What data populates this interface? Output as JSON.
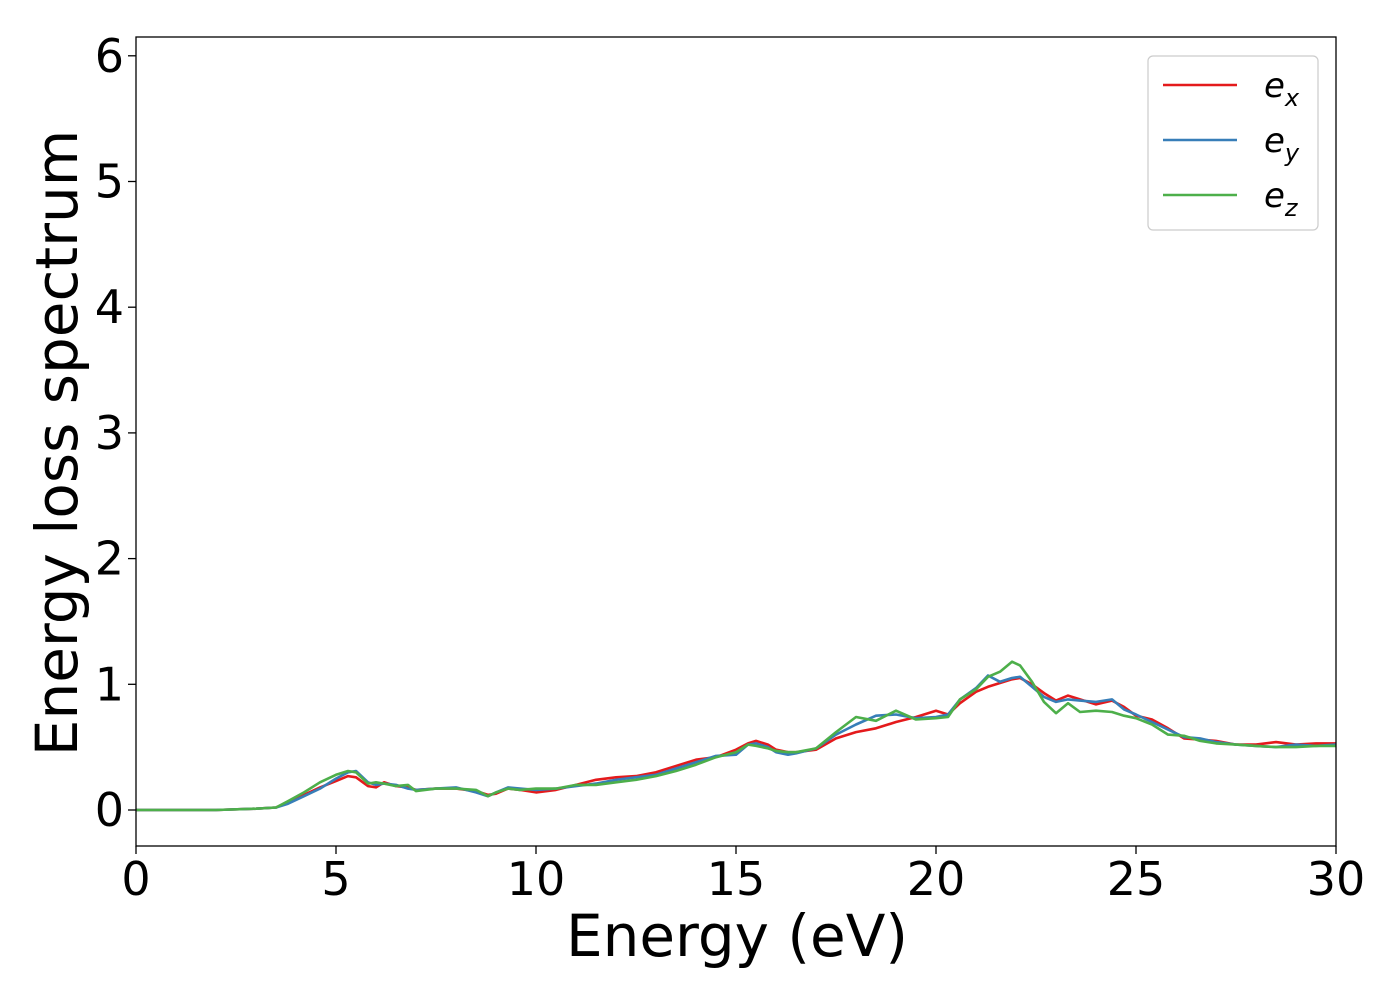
{
  "chart_data": {
    "type": "line",
    "title": "",
    "xlabel": "Energy (eV)",
    "ylabel": "Energy loss spectrum",
    "xlim": [
      0,
      30
    ],
    "ylim": [
      -0.3,
      6.1
    ],
    "xticks": [
      0,
      5,
      10,
      15,
      20,
      25,
      30
    ],
    "yticks": [
      0,
      1,
      2,
      3,
      4,
      5,
      6
    ],
    "grid": false,
    "legend": {
      "position": "top-right",
      "entries": [
        {
          "base": "e",
          "sub": "x"
        },
        {
          "base": "e",
          "sub": "y"
        },
        {
          "base": "e",
          "sub": "z"
        }
      ]
    },
    "series": [
      {
        "key": "ex",
        "color": "#e41a1c",
        "x": [
          0,
          1,
          2,
          3,
          3.5,
          3.8,
          4.2,
          4.6,
          5.0,
          5.3,
          5.5,
          5.8,
          6.0,
          6.2,
          6.5,
          6.8,
          7.0,
          7.5,
          8.0,
          8.5,
          8.8,
          9.0,
          9.3,
          9.6,
          10.0,
          10.5,
          11.0,
          11.5,
          12.0,
          12.5,
          13.0,
          13.5,
          14.0,
          14.5,
          15.0,
          15.3,
          15.5,
          15.8,
          16.0,
          16.3,
          16.5,
          17.0,
          17.5,
          18.0,
          18.5,
          19.0,
          19.5,
          20.0,
          20.3,
          20.6,
          21.0,
          21.3,
          21.6,
          21.9,
          22.1,
          22.4,
          22.7,
          23.0,
          23.3,
          23.6,
          24.0,
          24.4,
          24.7,
          25.0,
          25.4,
          25.8,
          26.2,
          26.6,
          27.0,
          27.5,
          28.0,
          28.5,
          29.0,
          29.5,
          30.0
        ],
        "values": [
          0,
          0,
          0,
          0.01,
          0.02,
          0.06,
          0.12,
          0.18,
          0.23,
          0.27,
          0.26,
          0.19,
          0.18,
          0.22,
          0.19,
          0.18,
          0.16,
          0.17,
          0.17,
          0.15,
          0.12,
          0.13,
          0.17,
          0.16,
          0.14,
          0.16,
          0.2,
          0.24,
          0.26,
          0.27,
          0.3,
          0.35,
          0.4,
          0.42,
          0.48,
          0.53,
          0.55,
          0.52,
          0.48,
          0.46,
          0.46,
          0.48,
          0.57,
          0.62,
          0.65,
          0.7,
          0.74,
          0.79,
          0.76,
          0.85,
          0.94,
          0.98,
          1.01,
          1.04,
          1.05,
          1.0,
          0.93,
          0.87,
          0.91,
          0.88,
          0.84,
          0.87,
          0.82,
          0.75,
          0.72,
          0.65,
          0.57,
          0.56,
          0.55,
          0.52,
          0.52,
          0.54,
          0.52,
          0.53,
          0.53
        ]
      },
      {
        "key": "ey",
        "color": "#377eb8",
        "x": [
          0,
          1,
          2,
          3,
          3.5,
          3.8,
          4.2,
          4.6,
          5.0,
          5.3,
          5.5,
          5.8,
          6.0,
          6.2,
          6.5,
          6.8,
          7.0,
          7.5,
          8.0,
          8.5,
          8.8,
          9.0,
          9.3,
          9.6,
          10.0,
          10.5,
          11.0,
          11.5,
          12.0,
          12.5,
          13.0,
          13.5,
          14.0,
          14.5,
          15.0,
          15.3,
          15.5,
          15.8,
          16.0,
          16.3,
          16.5,
          17.0,
          17.5,
          18.0,
          18.5,
          19.0,
          19.5,
          20.0,
          20.3,
          20.6,
          21.0,
          21.3,
          21.6,
          21.9,
          22.1,
          22.4,
          22.7,
          23.0,
          23.3,
          23.6,
          24.0,
          24.4,
          24.7,
          25.0,
          25.4,
          25.8,
          26.2,
          26.6,
          27.0,
          27.5,
          28.0,
          28.5,
          29.0,
          29.5,
          30.0
        ],
        "values": [
          0,
          0,
          0,
          0.01,
          0.02,
          0.05,
          0.11,
          0.17,
          0.25,
          0.3,
          0.31,
          0.22,
          0.2,
          0.21,
          0.2,
          0.17,
          0.16,
          0.17,
          0.18,
          0.14,
          0.11,
          0.14,
          0.18,
          0.17,
          0.16,
          0.17,
          0.19,
          0.21,
          0.24,
          0.26,
          0.28,
          0.33,
          0.38,
          0.43,
          0.44,
          0.52,
          0.53,
          0.5,
          0.46,
          0.44,
          0.45,
          0.49,
          0.6,
          0.68,
          0.75,
          0.76,
          0.73,
          0.74,
          0.76,
          0.88,
          0.97,
          1.07,
          1.02,
          1.05,
          1.06,
          0.98,
          0.9,
          0.86,
          0.88,
          0.87,
          0.86,
          0.88,
          0.8,
          0.76,
          0.7,
          0.64,
          0.58,
          0.57,
          0.54,
          0.52,
          0.51,
          0.5,
          0.52,
          0.51,
          0.52
        ]
      },
      {
        "key": "ez",
        "color": "#4daf4a",
        "x": [
          0,
          1,
          2,
          3,
          3.5,
          3.8,
          4.2,
          4.6,
          5.0,
          5.3,
          5.5,
          5.8,
          6.0,
          6.2,
          6.5,
          6.8,
          7.0,
          7.5,
          8.0,
          8.5,
          8.8,
          9.0,
          9.3,
          9.6,
          10.0,
          10.5,
          11.0,
          11.5,
          12.0,
          12.5,
          13.0,
          13.5,
          14.0,
          14.5,
          15.0,
          15.3,
          15.5,
          15.8,
          16.0,
          16.3,
          16.5,
          17.0,
          17.5,
          18.0,
          18.5,
          19.0,
          19.5,
          20.0,
          20.3,
          20.6,
          21.0,
          21.3,
          21.6,
          21.9,
          22.1,
          22.4,
          22.7,
          23.0,
          23.3,
          23.6,
          24.0,
          24.4,
          24.7,
          25.0,
          25.4,
          25.8,
          26.2,
          26.6,
          27.0,
          27.5,
          28.0,
          28.5,
          29.0,
          29.5,
          30.0
        ],
        "values": [
          0,
          0,
          0,
          0.01,
          0.02,
          0.07,
          0.14,
          0.22,
          0.28,
          0.31,
          0.3,
          0.21,
          0.22,
          0.21,
          0.19,
          0.2,
          0.15,
          0.17,
          0.17,
          0.16,
          0.11,
          0.14,
          0.17,
          0.16,
          0.17,
          0.17,
          0.2,
          0.2,
          0.22,
          0.24,
          0.27,
          0.31,
          0.36,
          0.42,
          0.46,
          0.52,
          0.51,
          0.49,
          0.47,
          0.46,
          0.46,
          0.49,
          0.62,
          0.74,
          0.71,
          0.79,
          0.72,
          0.73,
          0.74,
          0.88,
          0.96,
          1.06,
          1.1,
          1.18,
          1.15,
          1.02,
          0.86,
          0.77,
          0.85,
          0.78,
          0.79,
          0.78,
          0.75,
          0.73,
          0.68,
          0.6,
          0.59,
          0.55,
          0.53,
          0.52,
          0.51,
          0.5,
          0.5,
          0.51,
          0.51
        ]
      }
    ]
  }
}
